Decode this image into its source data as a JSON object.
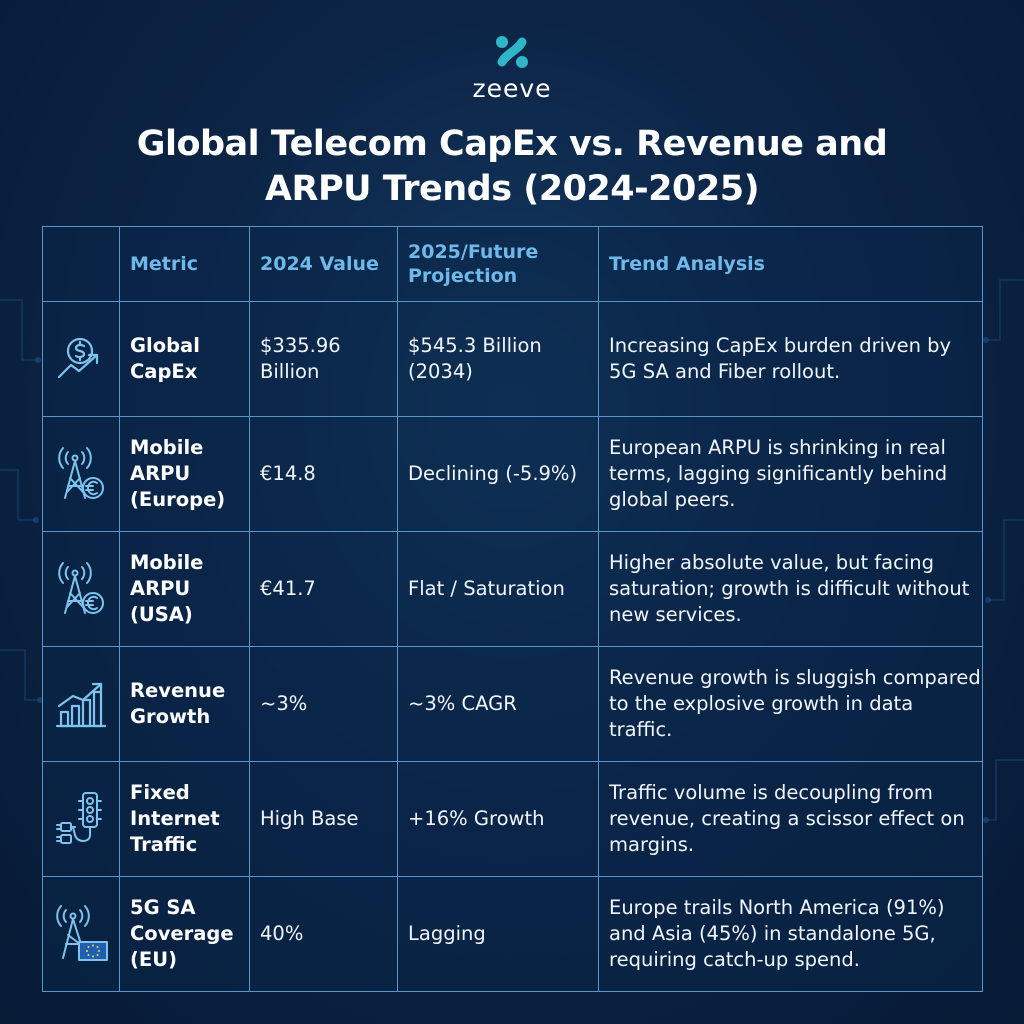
{
  "brand": {
    "name": "zeeve"
  },
  "title": {
    "line1": "Global Telecom CapEx vs. Revenue and",
    "line2": "ARPU Trends (2024-2025)"
  },
  "table": {
    "headers": {
      "metric": "Metric",
      "value_2024": "2024 Value",
      "projection": "2025/Future Projection",
      "trend": "Trend Analysis"
    },
    "rows": [
      {
        "icon": "dollar-growth-icon",
        "metric": "Global CapEx",
        "value_2024": "$335.96 Billion",
        "projection": "$545.3 Billion (2034)",
        "trend": "Increasing CapEx burden driven by 5G SA and Fiber rollout."
      },
      {
        "icon": "tower-euro-icon",
        "metric": "Mobile ARPU (Europe)",
        "value_2024": "€14.8",
        "projection": "Declining (-5.9%)",
        "trend": "European ARPU is shrinking in real terms, lagging significantly behind global peers."
      },
      {
        "icon": "tower-euro-icon",
        "metric": "Mobile ARPU (USA)",
        "value_2024": "€41.7",
        "projection": "Flat / Saturation",
        "trend": "Higher absolute value, but facing saturation; growth is difficult without new services."
      },
      {
        "icon": "bar-chart-growth-icon",
        "metric": "Revenue Growth",
        "value_2024": "~3%",
        "projection": "~3% CAGR",
        "trend": "Revenue growth is sluggish compared to the explosive growth in data traffic."
      },
      {
        "icon": "traffic-light-plug-icon",
        "metric": "Fixed Internet Traffic",
        "value_2024": "High Base",
        "projection": "+16% Growth",
        "trend": "Traffic volume is decoupling from revenue, creating a scissor effect on margins."
      },
      {
        "icon": "tower-eu-flag-icon",
        "metric": "5G SA Coverage (EU)",
        "value_2024": "40%",
        "projection": "Lagging",
        "trend": "Europe trails North America (91%) and Asia (45%) in standalone 5G, requiring catch-up spend."
      }
    ]
  },
  "colors": {
    "background": "#0c2547",
    "grid_line": "#5b95c8",
    "header_text": "#6fb8e8",
    "icon_stroke": "#7ec3ee",
    "logo_teal": "#2fb6c9"
  }
}
